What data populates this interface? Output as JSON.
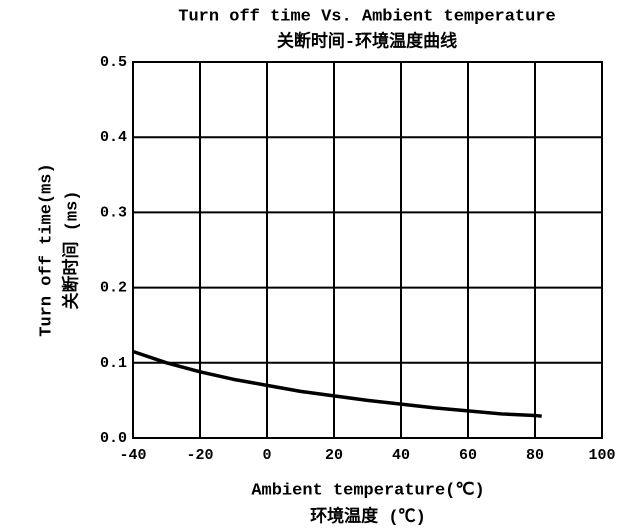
{
  "chart_data": {
    "type": "line",
    "title": "Turn off time Vs. Ambient temperature",
    "subtitle": "关断时间-环境温度曲线",
    "y_label": [
      "Turn off time(ms)",
      "关断时间 (ms)"
    ],
    "x_label": [
      "Ambient temperature(℃)",
      "环境温度 (℃)"
    ],
    "x": [
      -40,
      -30,
      -20,
      -10,
      0,
      10,
      20,
      30,
      40,
      50,
      60,
      70,
      80,
      82
    ],
    "series": [
      {
        "name": "Turn off time",
        "color": "#000000",
        "values": [
          0.115,
          0.1,
          0.088,
          0.078,
          0.07,
          0.062,
          0.056,
          0.05,
          0.045,
          0.04,
          0.036,
          0.032,
          0.03,
          0.029
        ]
      }
    ],
    "xlim": [
      -40,
      100
    ],
    "xticks": [
      -40,
      -20,
      0,
      20,
      40,
      60,
      80,
      100
    ],
    "ylim": [
      0,
      0.5
    ],
    "yticks": [
      {
        "value": 0,
        "label": "0.0"
      },
      0.1,
      0.2,
      0.3,
      0.4,
      0.5
    ],
    "grid": true
  }
}
